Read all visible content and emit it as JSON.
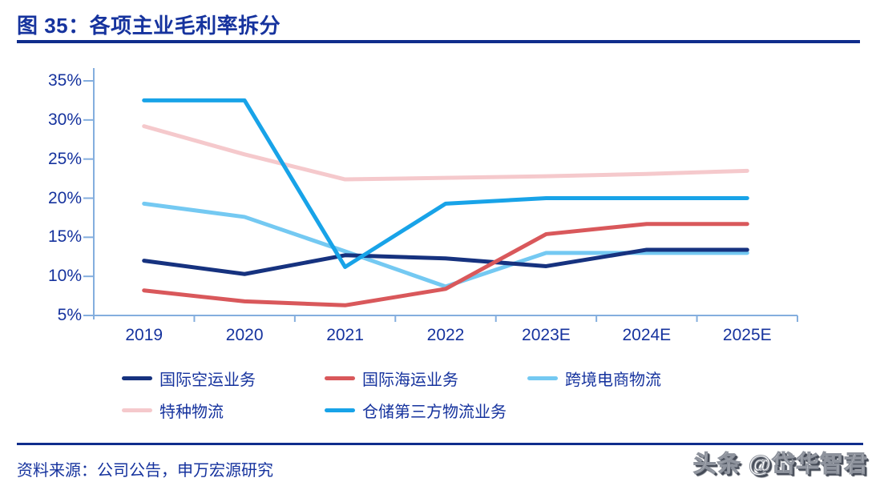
{
  "page": {
    "title": "图 35：各项主业毛利率拆分",
    "source_note": "资料来源：公司公告，申万宏源研究",
    "watermark": "头条 @岱华智君",
    "colors": {
      "text_blue": "#16339e",
      "rule_blue": "#0f2d8c",
      "axis_blue": "#84aede"
    }
  },
  "chart_data": {
    "type": "line",
    "title": "图 35：各项主业毛利率拆分",
    "xlabel": "",
    "ylabel": "毛利率",
    "unit": "%",
    "categories": [
      "2019",
      "2020",
      "2021",
      "2022",
      "2023E",
      "2024E",
      "2025E"
    ],
    "ylim": [
      5,
      35
    ],
    "ytick_step": 5,
    "ytick_labels": [
      "5%",
      "10%",
      "15%",
      "20%",
      "25%",
      "30%",
      "35%"
    ],
    "grid": false,
    "legend_position": "bottom",
    "series": [
      {
        "name": "国际空运业务",
        "color": "#16327f",
        "values": [
          12.0,
          10.3,
          12.7,
          12.3,
          11.3,
          13.4,
          13.4
        ]
      },
      {
        "name": "国际海运业务",
        "color": "#d9585b",
        "values": [
          8.2,
          6.8,
          6.3,
          8.4,
          15.4,
          16.7,
          16.7
        ]
      },
      {
        "name": "跨境电商物流",
        "color": "#74c9f2",
        "values": [
          19.3,
          17.6,
          13.2,
          8.7,
          13.0,
          13.0,
          13.0
        ]
      },
      {
        "name": "特种物流",
        "color": "#f5c9cc",
        "values": [
          29.2,
          25.6,
          22.4,
          22.6,
          22.8,
          23.1,
          23.5
        ]
      },
      {
        "name": "仓储第三方物流业务",
        "color": "#18a3e8",
        "values": [
          32.5,
          32.5,
          11.2,
          19.3,
          20.0,
          20.0,
          20.0
        ]
      }
    ]
  }
}
